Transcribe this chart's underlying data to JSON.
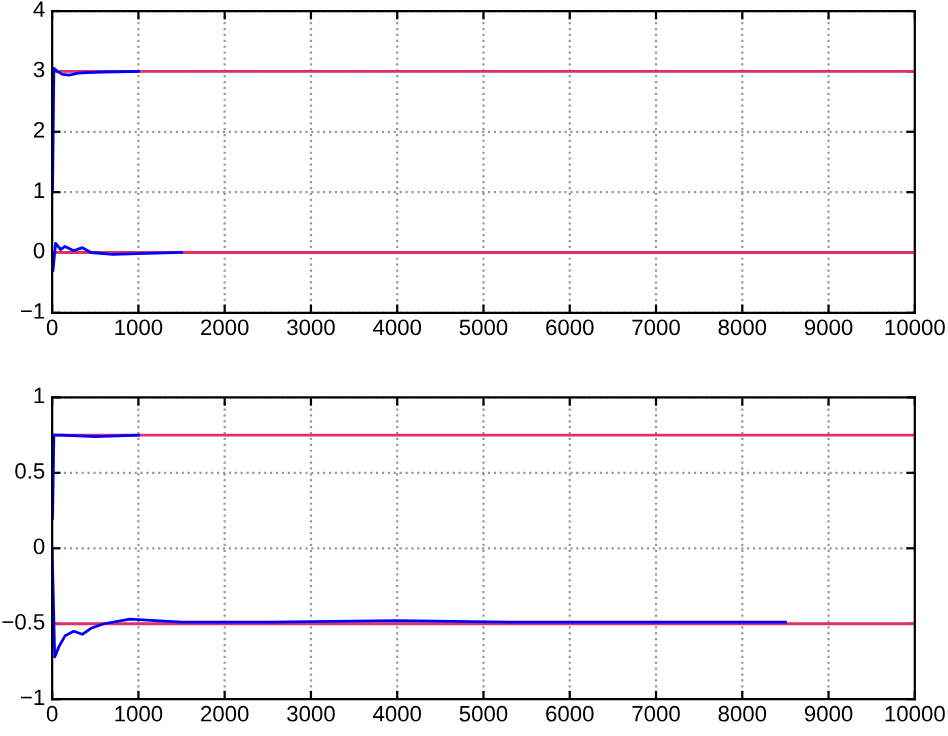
{
  "chart_data": [
    {
      "type": "line",
      "xlim": [
        0,
        10000
      ],
      "ylim": [
        -1,
        4
      ],
      "xticks": [
        0,
        1000,
        2000,
        3000,
        4000,
        5000,
        6000,
        7000,
        8000,
        9000,
        10000
      ],
      "yticks": [
        -1,
        0,
        1,
        2,
        3,
        4
      ],
      "grid": true,
      "line_style": "solid",
      "marker": "none",
      "series": [
        {
          "color": "#e0306a",
          "x": [
            0,
            10000
          ],
          "values": [
            3,
            3
          ]
        },
        {
          "color": "#e0306a",
          "x": [
            0,
            10000
          ],
          "values": [
            0,
            0
          ]
        },
        {
          "color": "#0000ff",
          "x": [
            5,
            20,
            60,
            120,
            200,
            300,
            400,
            600,
            1000
          ],
          "values": [
            1.0,
            3.05,
            3.0,
            2.95,
            2.94,
            2.97,
            2.98,
            2.99,
            3.0
          ]
        },
        {
          "color": "#0000ff",
          "x": [
            0,
            10,
            40,
            100,
            150,
            250,
            350,
            450,
            700,
            1000,
            1500
          ],
          "values": [
            0,
            -0.3,
            0.15,
            0.05,
            0.1,
            0.03,
            0.08,
            0.0,
            -0.03,
            -0.02,
            0.0
          ]
        }
      ]
    },
    {
      "type": "line",
      "xlim": [
        0,
        10000
      ],
      "ylim": [
        -1,
        1
      ],
      "xticks": [
        0,
        1000,
        2000,
        3000,
        4000,
        5000,
        6000,
        7000,
        8000,
        9000,
        10000
      ],
      "yticks": [
        -1,
        -0.5,
        0,
        0.5,
        1
      ],
      "grid": true,
      "line_style": "solid",
      "marker": "none",
      "series": [
        {
          "color": "#e0306a",
          "x": [
            0,
            10000
          ],
          "values": [
            0.75,
            0.75
          ]
        },
        {
          "color": "#e0306a",
          "x": [
            0,
            10000
          ],
          "values": [
            -0.5,
            -0.5
          ]
        },
        {
          "color": "#0000ff",
          "x": [
            5,
            20,
            100,
            500,
            1000
          ],
          "values": [
            0.2,
            0.75,
            0.75,
            0.74,
            0.75
          ]
        },
        {
          "color": "#0000ff",
          "x": [
            0,
            30,
            80,
            150,
            250,
            350,
            450,
            600,
            900,
            1500,
            2500,
            4000,
            5500,
            7000,
            8500
          ],
          "values": [
            0,
            -0.72,
            -0.65,
            -0.58,
            -0.55,
            -0.57,
            -0.53,
            -0.5,
            -0.47,
            -0.49,
            -0.49,
            -0.48,
            -0.49,
            -0.49,
            -0.49
          ]
        }
      ]
    }
  ]
}
